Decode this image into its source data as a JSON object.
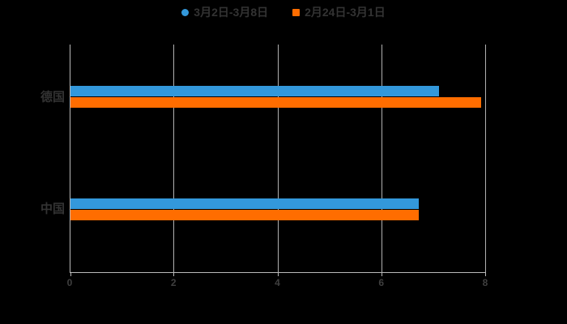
{
  "chart_data": {
    "type": "bar",
    "orientation": "horizontal",
    "title": "",
    "xlabel": "",
    "ylabel": "",
    "categories": [
      "德国",
      "中国"
    ],
    "series": [
      {
        "name": "3月2日-3月8日",
        "marker": "circle",
        "color": "#3398DB",
        "values": [
          7.1,
          6.7
        ]
      },
      {
        "name": "2月24日-3月1日",
        "marker": "square",
        "color": "#FF6D00",
        "values": [
          7.9,
          6.7
        ]
      }
    ],
    "xlim": [
      0,
      8
    ],
    "xticks": [
      0,
      2,
      4,
      6,
      8
    ],
    "grid": "vertical-only",
    "legend_position": "top-center",
    "colors": {
      "background": "#000000",
      "text": "#333333",
      "axis": "#b9b9b9",
      "grid": "#b0b0b0"
    }
  }
}
